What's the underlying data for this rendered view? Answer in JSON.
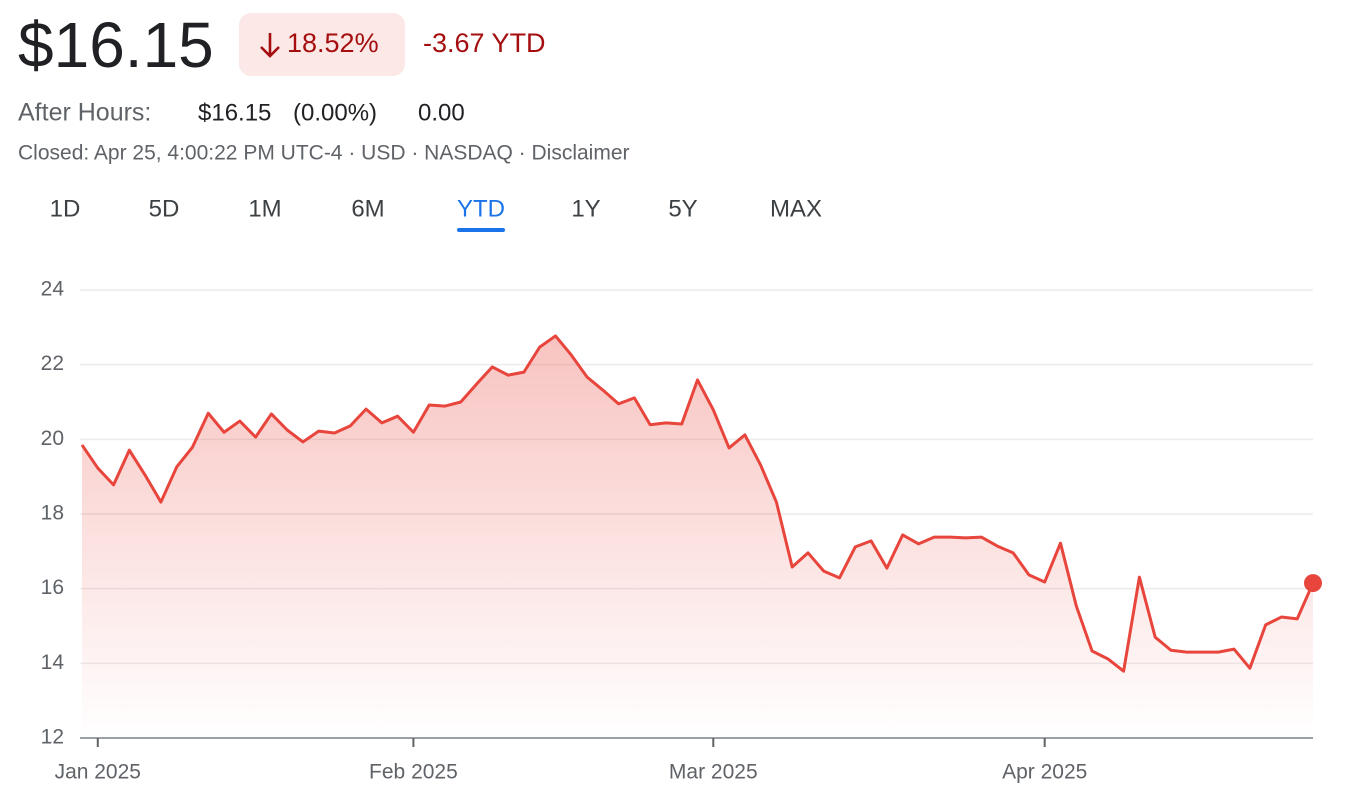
{
  "header": {
    "price": "$16.15",
    "change_percent": "18.52%",
    "change_ytd": "-3.67 YTD"
  },
  "after_hours": {
    "label": "After Hours:",
    "price": "$16.15",
    "percent": "(0.00%)",
    "change": "0.00"
  },
  "status": "Closed: Apr 25, 4:00:22 PM UTC-4 · USD · NASDAQ · Disclaimer",
  "tabs": [
    "1D",
    "5D",
    "1M",
    "6M",
    "YTD",
    "1Y",
    "5Y",
    "MAX"
  ],
  "active_tab": 4,
  "chart_data": {
    "type": "line",
    "categories": [
      null,
      "Jan 2025",
      null,
      null,
      null,
      null,
      null,
      null,
      null,
      null,
      null,
      null,
      null,
      null,
      null,
      null,
      null,
      null,
      null,
      null,
      null,
      "Feb 2025",
      null,
      null,
      null,
      null,
      null,
      null,
      null,
      null,
      null,
      null,
      null,
      null,
      null,
      null,
      null,
      null,
      null,
      null,
      "Mar 2025",
      null,
      null,
      null,
      null,
      null,
      null,
      null,
      null,
      null,
      null,
      null,
      null,
      null,
      null,
      null,
      null,
      null,
      null,
      null,
      null,
      "Apr 2025",
      null,
      null,
      null,
      null,
      null,
      null,
      null,
      null,
      null,
      null,
      null,
      null,
      null,
      null,
      null,
      null,
      null
    ],
    "series": [
      {
        "color": "#e8453c",
        "values": [
          19.85,
          19.23,
          18.78,
          19.71,
          19.04,
          18.32,
          19.26,
          19.79,
          20.7,
          20.19,
          20.49,
          20.06,
          20.68,
          20.25,
          19.93,
          20.22,
          20.17,
          20.36,
          20.81,
          20.44,
          20.62,
          20.19,
          20.92,
          20.89,
          21.0,
          21.48,
          21.94,
          21.72,
          21.8,
          22.47,
          22.77,
          22.26,
          21.67,
          21.32,
          20.95,
          21.11,
          20.39,
          20.44,
          20.41,
          21.59,
          20.79,
          19.77,
          20.12,
          19.31,
          18.32,
          16.58,
          16.96,
          16.47,
          16.29,
          17.12,
          17.28,
          16.55,
          17.44,
          17.2,
          17.38,
          17.38,
          17.36,
          17.38,
          17.14,
          16.96,
          16.37,
          16.18,
          17.22,
          15.54,
          14.33,
          14.12,
          13.79,
          16.31,
          14.7,
          14.35,
          14.3,
          14.3,
          14.3,
          14.38,
          13.87,
          15.03,
          15.24,
          15.19,
          16.15
        ]
      }
    ],
    "ylim": [
      12,
      24
    ],
    "yticks": [
      12,
      14,
      16,
      18,
      20,
      22,
      24
    ],
    "grid": true
  }
}
